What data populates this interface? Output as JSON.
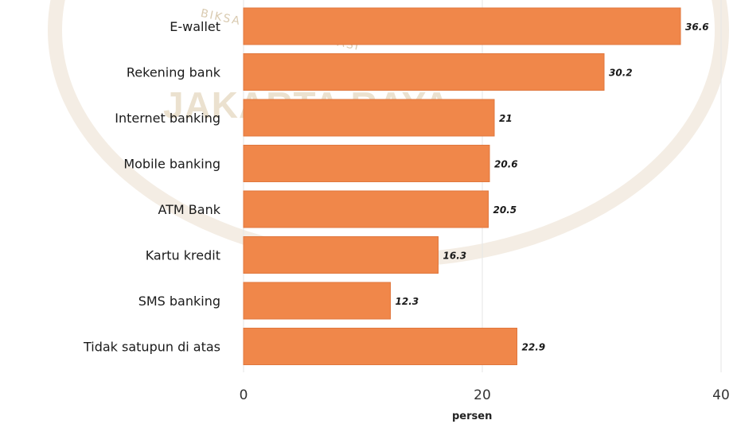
{
  "chart_data": {
    "type": "bar",
    "orientation": "horizontal",
    "categories": [
      "E-wallet",
      "Rekening bank",
      "Internet banking",
      "Mobile banking",
      "ATM Bank",
      "Kartu kredit",
      "SMS banking",
      "Tidak satupun di atas"
    ],
    "values": [
      36.6,
      30.2,
      21,
      20.6,
      20.5,
      16.3,
      12.3,
      22.9
    ],
    "value_labels": [
      "36.6",
      "30.2",
      "21",
      "20.6",
      "20.5",
      "16.3",
      "12.3",
      "22.9"
    ],
    "xlabel": "persen",
    "ylabel": "",
    "xlim": [
      0,
      40
    ],
    "xticks": [
      "0",
      "20",
      "40"
    ],
    "grid": true,
    "bar_color": "#f0874a"
  },
  "watermark": {
    "main_text": "JAKARTA RAYA",
    "seal_text": "BIKSA MAHWASTU DASI"
  }
}
